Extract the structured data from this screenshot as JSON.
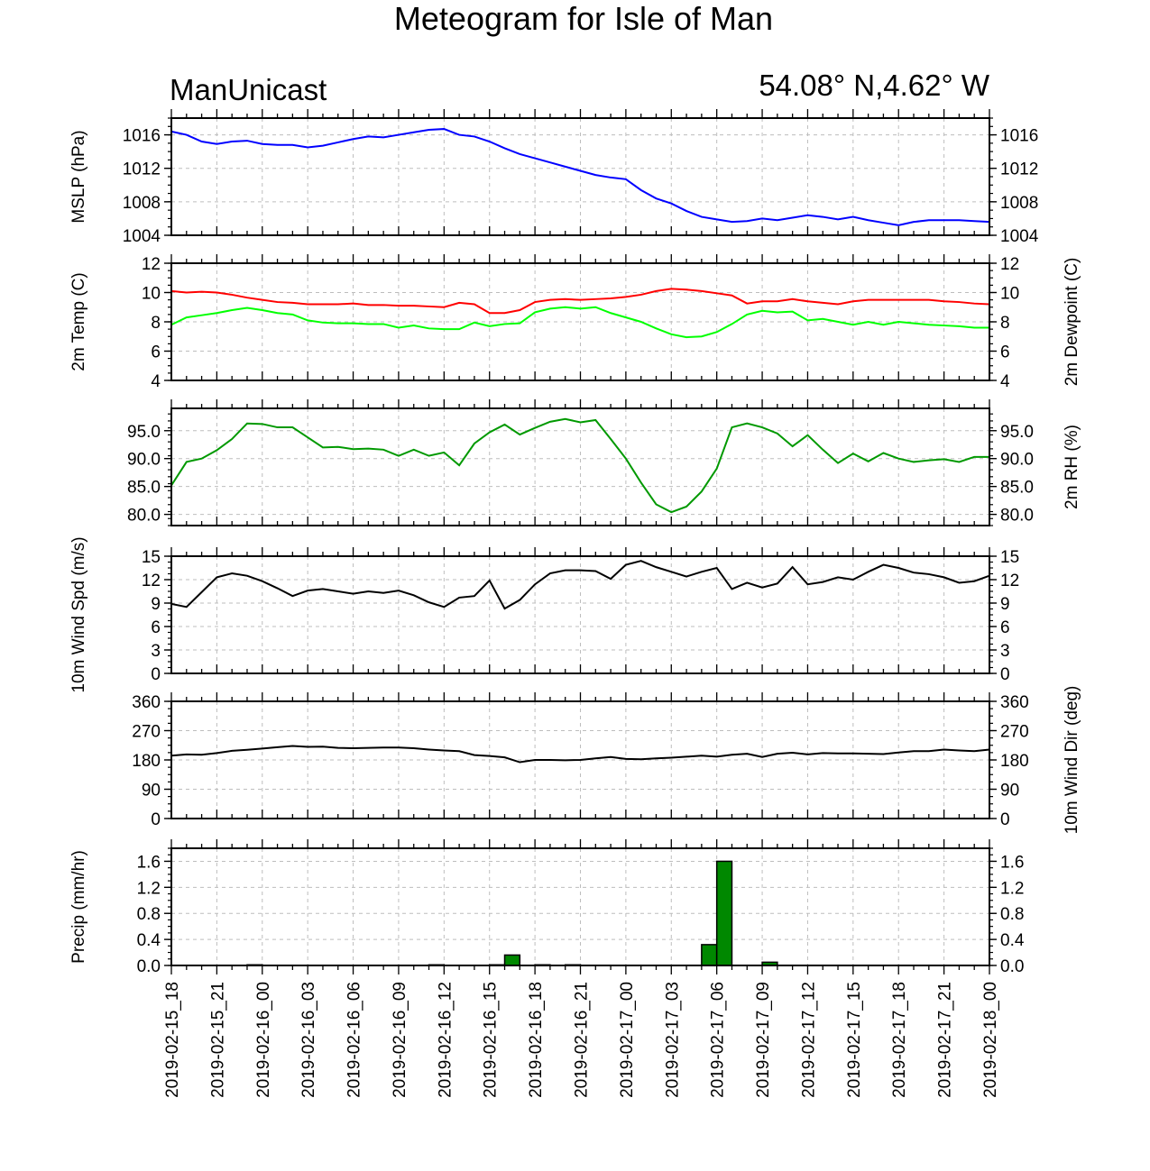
{
  "header": {
    "title": "Meteogram for Isle of Man",
    "left_label": "ManUnicast",
    "right_label": "54.08° N,4.62° W"
  },
  "chart_data": {
    "type": "line",
    "x_tick_labels": [
      "2019-02-15_18",
      "2019-02-15_21",
      "2019-02-16_00",
      "2019-02-16_03",
      "2019-02-16_06",
      "2019-02-16_09",
      "2019-02-16_12",
      "2019-02-16_15",
      "2019-02-16_18",
      "2019-02-16_21",
      "2019-02-17_00",
      "2019-02-17_03",
      "2019-02-17_06",
      "2019-02-17_09",
      "2019-02-17_12",
      "2019-02-17_15",
      "2019-02-17_18",
      "2019-02-17_21",
      "2019-02-18_00"
    ],
    "x_range_hours": [
      0,
      54
    ],
    "time_step_hours": 1,
    "panels": [
      {
        "id": "mslp",
        "left_label": "MSLP (hPa)",
        "right_label": "",
        "ylim": [
          1004,
          1018
        ],
        "left_ticks": [
          "1016",
          "1012",
          "1008",
          "1004"
        ],
        "left_tick_values": [
          1016,
          1012,
          1008,
          1004
        ],
        "right_ticks": [
          "1016",
          "1012",
          "1008",
          "1004"
        ],
        "right_tick_values": [
          1016,
          1012,
          1008,
          1004
        ],
        "series": [
          {
            "color": "#0000ff",
            "values": [
              1016.4,
              1016.0,
              1015.2,
              1014.9,
              1015.2,
              1015.3,
              1014.9,
              1014.8,
              1014.8,
              1014.5,
              1014.7,
              1015.1,
              1015.5,
              1015.8,
              1015.7,
              1016.0,
              1016.3,
              1016.6,
              1016.7,
              1016.0,
              1015.8,
              1015.2,
              1014.4,
              1013.7,
              1013.2,
              1012.7,
              1012.2,
              1011.7,
              1011.2,
              1010.9,
              1010.7,
              1009.4,
              1008.4,
              1007.8,
              1006.9,
              1006.2,
              1005.9,
              1005.6,
              1005.7,
              1006.0,
              1005.8,
              1006.1,
              1006.4,
              1006.2,
              1005.9,
              1006.2,
              1005.8,
              1005.5,
              1005.2,
              1005.6,
              1005.8,
              1005.8,
              1005.8,
              1005.7,
              1005.6
            ]
          }
        ]
      },
      {
        "id": "temp",
        "left_label": "2m Temp (C)",
        "right_label": "2m Dewpoint (C)",
        "ylim": [
          4,
          12
        ],
        "left_ticks": [
          "12",
          "10",
          "8",
          "6",
          "4"
        ],
        "left_tick_values": [
          12,
          10,
          8,
          6,
          4
        ],
        "right_ticks": [
          "12",
          "10",
          "8",
          "6",
          "4"
        ],
        "right_tick_values": [
          12,
          10,
          8,
          6,
          4
        ],
        "series": [
          {
            "color": "#ff0000",
            "values": [
              10.1,
              10.0,
              10.05,
              10.0,
              9.85,
              9.65,
              9.5,
              9.35,
              9.3,
              9.2,
              9.2,
              9.2,
              9.25,
              9.15,
              9.15,
              9.1,
              9.1,
              9.05,
              9.0,
              9.3,
              9.2,
              8.6,
              8.6,
              8.8,
              9.35,
              9.5,
              9.55,
              9.5,
              9.55,
              9.6,
              9.7,
              9.85,
              10.1,
              10.25,
              10.2,
              10.1,
              9.95,
              9.8,
              9.25,
              9.4,
              9.4,
              9.55,
              9.4,
              9.3,
              9.2,
              9.4,
              9.5,
              9.5,
              9.5,
              9.5,
              9.5,
              9.4,
              9.35,
              9.25,
              9.2
            ]
          },
          {
            "color": "#00ff00",
            "values": [
              7.8,
              8.3,
              8.45,
              8.6,
              8.8,
              8.95,
              8.8,
              8.6,
              8.5,
              8.1,
              7.95,
              7.9,
              7.9,
              7.85,
              7.85,
              7.6,
              7.75,
              7.55,
              7.5,
              7.5,
              7.95,
              7.7,
              7.85,
              7.9,
              8.65,
              8.9,
              9.0,
              8.9,
              9.0,
              8.6,
              8.3,
              8.0,
              7.55,
              7.15,
              6.95,
              7.0,
              7.3,
              7.85,
              8.5,
              8.75,
              8.65,
              8.7,
              8.1,
              8.2,
              8.0,
              7.8,
              8.0,
              7.8,
              8.0,
              7.9,
              7.8,
              7.75,
              7.7,
              7.6,
              7.6
            ]
          }
        ]
      },
      {
        "id": "rh",
        "left_label": "",
        "right_label": "2m RH (%)",
        "ylim": [
          78,
          99
        ],
        "left_ticks": [
          "95.0",
          "90.0",
          "85.0",
          "80.0"
        ],
        "left_tick_values": [
          95,
          90,
          85,
          80
        ],
        "right_ticks": [
          "95.0",
          "90.0",
          "85.0",
          "80.0"
        ],
        "right_tick_values": [
          95,
          90,
          85,
          80
        ],
        "series": [
          {
            "color": "#009900",
            "values": [
              85.2,
              89.4,
              90.0,
              91.5,
              93.5,
              96.3,
              96.2,
              95.6,
              95.6,
              93.8,
              92.0,
              92.1,
              91.7,
              91.8,
              91.6,
              90.5,
              91.6,
              90.5,
              91.1,
              88.8,
              92.7,
              94.7,
              96.1,
              94.3,
              95.5,
              96.6,
              97.1,
              96.5,
              96.9,
              93.5,
              90.0,
              85.7,
              81.8,
              80.4,
              81.4,
              84.1,
              88.2,
              95.6,
              96.3,
              95.6,
              94.5,
              92.2,
              94.2,
              91.6,
              89.2,
              90.9,
              89.5,
              91.0,
              90.0,
              89.4,
              89.7,
              89.9,
              89.4,
              90.3,
              90.3
            ]
          }
        ]
      },
      {
        "id": "wspd",
        "left_label": "10m Wind Spd (m/s)",
        "right_label": "",
        "ylim": [
          0,
          15
        ],
        "left_ticks": [
          "15",
          "12",
          "9",
          "6",
          "3",
          "0"
        ],
        "left_tick_values": [
          15,
          12,
          9,
          6,
          3,
          0
        ],
        "right_ticks": [
          "15",
          "12",
          "9",
          "6",
          "3",
          "0"
        ],
        "right_tick_values": [
          15,
          12,
          9,
          6,
          3,
          0
        ],
        "series": [
          {
            "color": "#000000",
            "values": [
              8.9,
              8.5,
              10.4,
              12.3,
              12.8,
              12.5,
              11.8,
              10.9,
              9.9,
              10.6,
              10.8,
              10.5,
              10.2,
              10.5,
              10.3,
              10.6,
              10.0,
              9.1,
              8.5,
              9.7,
              9.9,
              11.9,
              8.3,
              9.4,
              11.4,
              12.8,
              13.2,
              13.2,
              13.1,
              12.1,
              13.9,
              14.4,
              13.6,
              13.0,
              12.4,
              13.0,
              13.5,
              10.8,
              11.6,
              11.0,
              11.5,
              13.6,
              11.4,
              11.7,
              12.3,
              12.0,
              13.0,
              13.9,
              13.5,
              12.9,
              12.7,
              12.3,
              11.6,
              11.8,
              12.5
            ]
          }
        ]
      },
      {
        "id": "wdir",
        "left_label": "",
        "right_label": "10m Wind Dir (deg)",
        "ylim": [
          0,
          360
        ],
        "left_ticks": [
          "360",
          "270",
          "180",
          "90",
          "0"
        ],
        "left_tick_values": [
          360,
          270,
          180,
          90,
          0
        ],
        "right_ticks": [
          "360",
          "270",
          "180",
          "90",
          "0"
        ],
        "right_tick_values": [
          360,
          270,
          180,
          90,
          0
        ],
        "series": [
          {
            "color": "#000000",
            "values": [
              193,
              197,
              196,
              201,
              208,
              211,
              215,
              219,
              223,
              220,
              221,
              217,
              216,
              217,
              218,
              218,
              216,
              212,
              209,
              207,
              195,
              192,
              188,
              173,
              180,
              180,
              179,
              180,
              185,
              189,
              183,
              182,
              185,
              187,
              190,
              193,
              190,
              196,
              199,
              189,
              199,
              202,
              197,
              201,
              200,
              200,
              199,
              198,
              203,
              207,
              207,
              212,
              209,
              207,
              212
            ]
          }
        ]
      },
      {
        "id": "precip",
        "left_label": "Precip (mm/hr)",
        "right_label": "",
        "ylim": [
          0,
          1.8
        ],
        "left_ticks": [
          "1.6",
          "1.2",
          "0.8",
          "0.4",
          "0.0"
        ],
        "left_tick_values": [
          1.6,
          1.2,
          0.8,
          0.4,
          0.0
        ],
        "right_ticks": [
          "1.6",
          "1.2",
          "0.8",
          "0.4",
          "0.0"
        ],
        "right_tick_values": [
          1.6,
          1.2,
          0.8,
          0.4,
          0.0
        ],
        "bar_color": "#008800",
        "bars": [
          {
            "hour": 6,
            "value": 0.01
          },
          {
            "hour": 18,
            "value": 0.01
          },
          {
            "hour": 22,
            "value": 0.01
          },
          {
            "hour": 23,
            "value": 0.16
          },
          {
            "hour": 25,
            "value": 0.01
          },
          {
            "hour": 27,
            "value": 0.01
          },
          {
            "hour": 36,
            "value": 0.32
          },
          {
            "hour": 37,
            "value": 1.6
          },
          {
            "hour": 40,
            "value": 0.05
          }
        ]
      }
    ]
  }
}
